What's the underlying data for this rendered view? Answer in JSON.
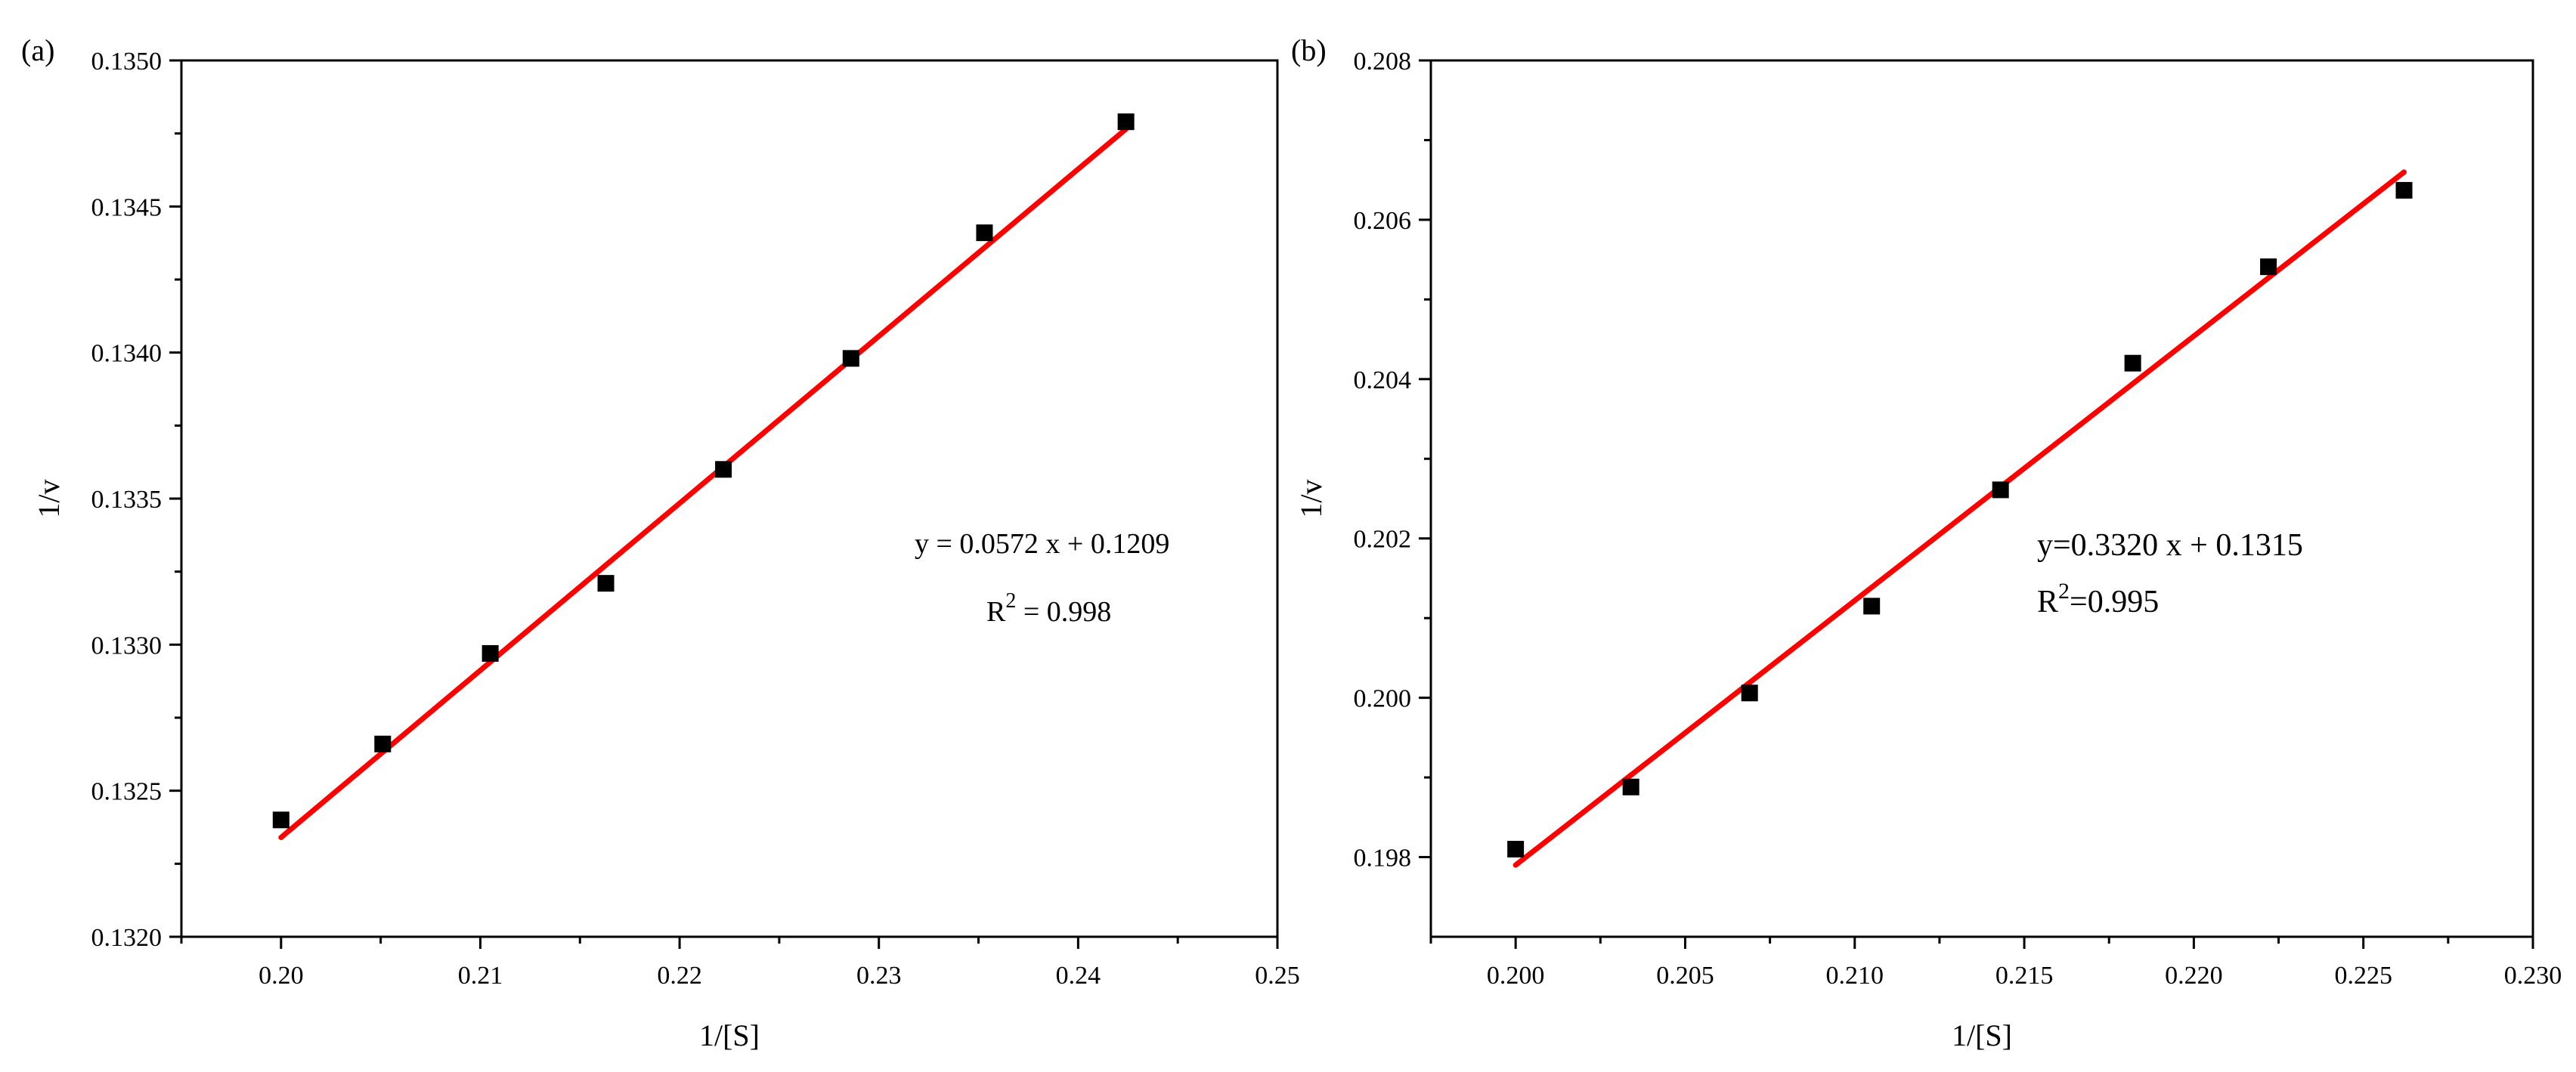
{
  "chart_data": [
    {
      "type": "scatter",
      "panel_label": "(a)",
      "title": "",
      "xlabel": "1/[S]",
      "ylabel": "1/v",
      "xlim": [
        0.195,
        0.25
      ],
      "ylim": [
        0.132,
        0.135
      ],
      "xticks": [
        0.2,
        0.21,
        0.22,
        0.23,
        0.24,
        0.25
      ],
      "xtick_labels": [
        "0.20",
        "0.21",
        "0.22",
        "0.23",
        "0.24",
        "0.25"
      ],
      "yticks": [
        0.132,
        0.1325,
        0.133,
        0.1335,
        0.134,
        0.1345,
        0.135
      ],
      "ytick_labels": [
        "0.1320",
        "0.1325",
        "0.1330",
        "0.1335",
        "0.1340",
        "0.1345",
        "0.1350"
      ],
      "points": {
        "x": [
          0.2,
          0.2051,
          0.2105,
          0.2163,
          0.2222,
          0.2286,
          0.2353,
          0.2424
        ],
        "y": [
          0.1324,
          0.13266,
          0.13297,
          0.13321,
          0.1336,
          0.13398,
          0.13441,
          0.13479
        ]
      },
      "fit": {
        "slope": 0.0572,
        "intercept": 0.1209,
        "x_range": [
          0.2,
          0.2424
        ],
        "color": "#ff0000"
      },
      "annotation": {
        "equation": "y = 0.0572 x + 0.1209",
        "r2_prefix": "R",
        "r2_sup": "2",
        "r2_value": " = 0.998"
      },
      "marker_color": "#000000",
      "grid": false
    },
    {
      "type": "scatter",
      "panel_label": "(b)",
      "title": "",
      "xlabel": "1/[S]",
      "ylabel": "1/v",
      "xlim": [
        0.1975,
        0.23
      ],
      "ylim": [
        0.197,
        0.208
      ],
      "xticks": [
        0.2,
        0.205,
        0.21,
        0.215,
        0.22,
        0.225,
        0.23
      ],
      "xtick_labels": [
        "0.200",
        "0.205",
        "0.210",
        "0.215",
        "0.220",
        "0.225",
        "0.230"
      ],
      "yticks": [
        0.198,
        0.2,
        0.202,
        0.204,
        0.206,
        0.208
      ],
      "ytick_labels": [
        "0.198",
        "0.200",
        "0.202",
        "0.204",
        "0.206",
        "0.208"
      ],
      "points": {
        "x": [
          0.2,
          0.2034,
          0.2069,
          0.2105,
          0.2143,
          0.2182,
          0.2222,
          0.2262
        ],
        "y": [
          0.1981,
          0.19888,
          0.20006,
          0.20115,
          0.20261,
          0.2042,
          0.20541,
          0.20637
        ]
      },
      "fit": {
        "slope": 0.332,
        "intercept": 0.1315,
        "x_range": [
          0.2,
          0.2262
        ],
        "color": "#ff0000"
      },
      "annotation": {
        "equation": "y=0.3320 x + 0.1315",
        "r2_prefix": "R",
        "r2_sup": "2",
        "r2_value": "=0.995"
      },
      "marker_color": "#000000",
      "grid": false
    }
  ]
}
